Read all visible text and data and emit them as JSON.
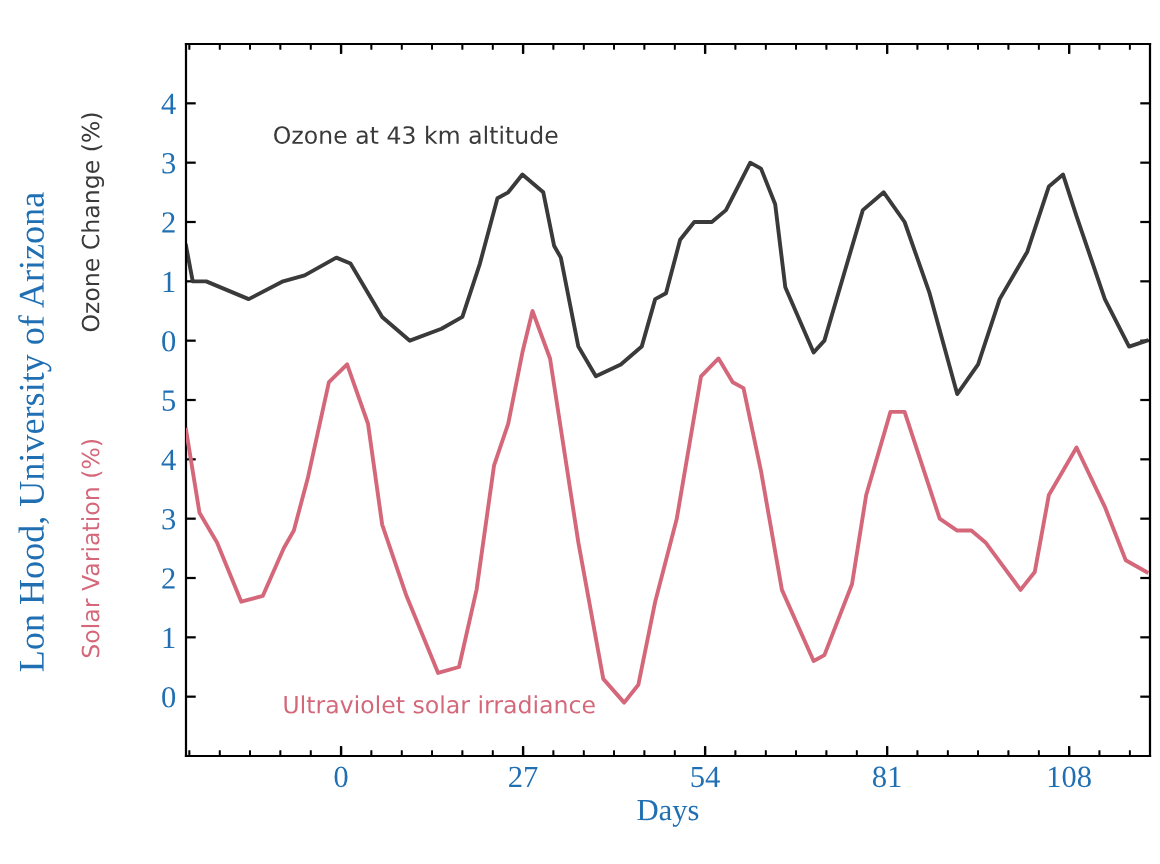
{
  "chart_data": [
    {
      "type": "line",
      "ylabel": "Ozone Change (%)",
      "xlim": [
        -23,
        120
      ],
      "xticks": [
        0,
        27,
        54,
        81,
        108
      ],
      "ylim": [
        -7,
        5
      ],
      "yticks": [
        0,
        1,
        2,
        3,
        4
      ],
      "tick_labels": "y",
      "grid": false,
      "legend": false,
      "annotations": [
        "Lon Hood, University of Arizona"
      ],
      "series": [
        {
          "name": "Ozone at 43 km altitude",
          "color": "#3a3a3a",
          "x": [
            -23,
            -22,
            -20,
            -13.7,
            -8.6,
            -5.4,
            -0.7,
            1.4,
            6.1,
            10.2,
            14.9,
            18.0,
            20.6,
            23.2,
            24.8,
            26.9,
            30.0,
            31.6,
            32.6,
            35.2,
            37.8,
            41.5,
            44.6,
            46.6,
            48.2,
            50.3,
            52.4,
            55.0,
            57.1,
            60.7,
            62.3,
            64.4,
            65.9,
            70.1,
            71.7,
            74.8,
            77.4,
            80.5,
            83.6,
            87.3,
            91.4,
            94.5,
            97.7,
            101.8,
            105.0,
            107.1,
            109.1,
            111.2,
            113.3,
            116.9,
            119.5
          ],
          "values": [
            1.6,
            1.0,
            1.0,
            0.7,
            1.0,
            1.1,
            1.4,
            1.3,
            0.4,
            0.0,
            0.2,
            0.4,
            1.3,
            2.4,
            2.5,
            2.8,
            2.5,
            1.6,
            1.4,
            -0.1,
            -0.6,
            -0.4,
            -0.1,
            0.7,
            0.8,
            1.7,
            2.0,
            2.0,
            2.2,
            3.0,
            2.9,
            2.3,
            0.9,
            -0.2,
            0.0,
            1.2,
            2.2,
            2.5,
            2.0,
            0.8,
            -0.9,
            -0.4,
            0.7,
            1.5,
            2.6,
            2.8,
            2.1,
            1.4,
            0.7,
            -0.1,
            0.0
          ]
        }
      ]
    },
    {
      "type": "line",
      "xlabel": "Days",
      "ylabel": "Solar Variation (%)",
      "xlim": [
        -23,
        120
      ],
      "xticks": [
        0,
        27,
        54,
        81,
        108
      ],
      "ylim": [
        -1,
        11
      ],
      "yticks": [
        0,
        1,
        2,
        3,
        4,
        5
      ],
      "grid": false,
      "legend": false,
      "series": [
        {
          "name": "Ultraviolet solar irradiance",
          "color": "#d4687a",
          "x": [
            -23,
            -21,
            -18.4,
            -14.8,
            -11.6,
            -8.5,
            -7.0,
            -4.9,
            -1.8,
            0.9,
            4.0,
            6.1,
            9.7,
            14.4,
            17.5,
            20.1,
            22.7,
            24.8,
            26.9,
            28.4,
            31.0,
            35.2,
            38.9,
            42.0,
            44.1,
            46.6,
            49.8,
            53.4,
            56.0,
            58.1,
            59.7,
            62.3,
            65.4,
            70.1,
            71.7,
            75.8,
            77.9,
            81.5,
            83.6,
            88.8,
            91.4,
            93.5,
            95.6,
            98.2,
            100.8,
            102.9,
            105.0,
            109.1,
            113.3,
            116.4,
            119.5
          ],
          "values": [
            4.5,
            3.1,
            2.6,
            1.6,
            1.7,
            2.5,
            2.8,
            3.7,
            5.3,
            5.6,
            4.6,
            2.9,
            1.7,
            0.4,
            0.5,
            1.8,
            3.9,
            4.6,
            5.8,
            6.5,
            5.7,
            2.6,
            0.3,
            -0.1,
            0.2,
            1.6,
            3.0,
            5.4,
            5.7,
            5.3,
            5.2,
            3.8,
            1.8,
            0.6,
            0.7,
            1.9,
            3.4,
            4.8,
            4.8,
            3.0,
            2.8,
            2.8,
            2.6,
            2.2,
            1.8,
            2.1,
            3.4,
            4.2,
            3.2,
            2.3,
            2.1
          ]
        }
      ]
    }
  ]
}
